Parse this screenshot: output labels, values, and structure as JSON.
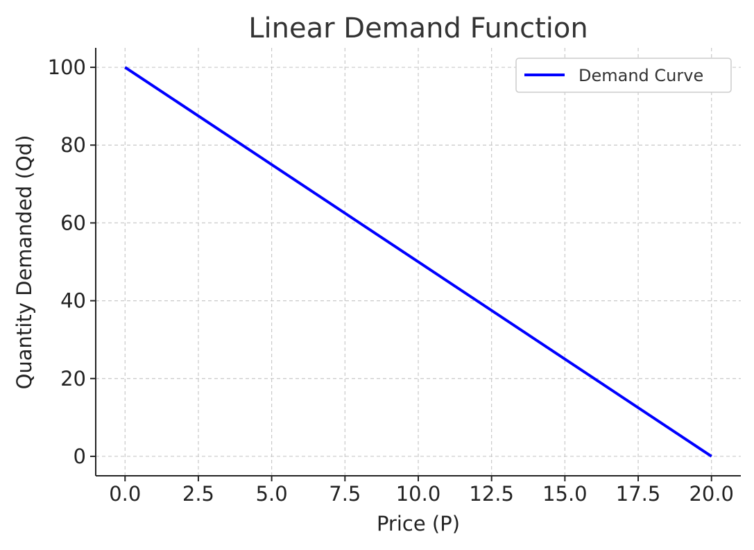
{
  "chart_data": {
    "type": "line",
    "title": "Linear Demand Function",
    "xlabel": "Price (P)",
    "ylabel": "Quantity Demanded (Qd)",
    "xlim": [
      -1.0,
      21.0
    ],
    "ylim": [
      -5,
      105
    ],
    "xticks": [
      0,
      2.5,
      5,
      7.5,
      10,
      12.5,
      15,
      17.5,
      20
    ],
    "xtick_labels": [
      "0.0",
      "2.5",
      "5.0",
      "7.5",
      "10.0",
      "12.5",
      "15.0",
      "17.5",
      "20.0"
    ],
    "yticks": [
      0,
      20,
      40,
      60,
      80,
      100
    ],
    "ytick_labels": [
      "0",
      "20",
      "40",
      "60",
      "80",
      "100"
    ],
    "grid": true,
    "legend_position": "top-right",
    "series": [
      {
        "name": "Demand Curve",
        "color": "#0000ff",
        "x": [
          0,
          20
        ],
        "y": [
          100,
          0
        ]
      }
    ]
  }
}
